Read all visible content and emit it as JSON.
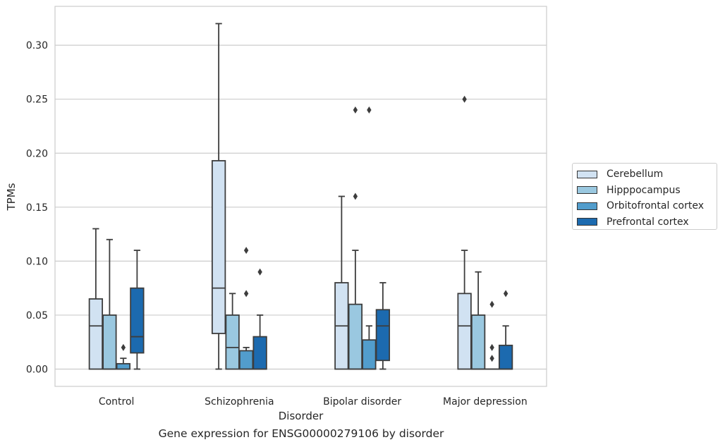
{
  "chart_data": {
    "type": "box",
    "title": "",
    "caption": "Gene expression for ENSG00000279106 by disorder",
    "xlabel": "Disorder",
    "ylabel": "TPMs",
    "ylim": [
      -0.016,
      0.336
    ],
    "yticks": [
      "0.00",
      "0.05",
      "0.10",
      "0.15",
      "0.20",
      "0.25",
      "0.30"
    ],
    "ytick_values": [
      0.0,
      0.05,
      0.1,
      0.15,
      0.2,
      0.25,
      0.3
    ],
    "grid": "horizontal",
    "legend_position": "right",
    "categories": [
      "Control",
      "Schizophrenia",
      "Bipolar disorder",
      "Major depression"
    ],
    "series": [
      {
        "name": "Cerebellum",
        "color": "#d1e2f2",
        "boxes": [
          {
            "whislo": 0.0,
            "q1": 0.0,
            "med": 0.04,
            "q3": 0.065,
            "whishi": 0.13,
            "fliers": []
          },
          {
            "whislo": 0.0,
            "q1": 0.033,
            "med": 0.075,
            "q3": 0.193,
            "whishi": 0.32,
            "fliers": []
          },
          {
            "whislo": 0.0,
            "q1": 0.0,
            "med": 0.04,
            "q3": 0.08,
            "whishi": 0.16,
            "fliers": []
          },
          {
            "whislo": 0.0,
            "q1": 0.0,
            "med": 0.04,
            "q3": 0.07,
            "whishi": 0.11,
            "fliers": [
              0.25
            ]
          }
        ]
      },
      {
        "name": "Hipppocampus",
        "color": "#9ac8e0",
        "boxes": [
          {
            "whislo": 0.0,
            "q1": 0.0,
            "med": 0.0,
            "q3": 0.05,
            "whishi": 0.12,
            "fliers": []
          },
          {
            "whislo": 0.0,
            "q1": 0.0,
            "med": 0.02,
            "q3": 0.05,
            "whishi": 0.07,
            "fliers": []
          },
          {
            "whislo": 0.0,
            "q1": 0.0,
            "med": 0.0,
            "q3": 0.06,
            "whishi": 0.11,
            "fliers": [
              0.16,
              0.24
            ]
          },
          {
            "whislo": 0.0,
            "q1": 0.0,
            "med": 0.0,
            "q3": 0.05,
            "whishi": 0.09,
            "fliers": []
          }
        ]
      },
      {
        "name": "Orbitofrontal cortex",
        "color": "#529dcc",
        "boxes": [
          {
            "whislo": 0.0,
            "q1": 0.0,
            "med": 0.0,
            "q3": 0.005,
            "whishi": 0.01,
            "fliers": [
              0.02
            ]
          },
          {
            "whislo": 0.0,
            "q1": 0.0,
            "med": 0.0,
            "q3": 0.017,
            "whishi": 0.02,
            "fliers": [
              0.07,
              0.11
            ]
          },
          {
            "whislo": 0.0,
            "q1": 0.0,
            "med": 0.0,
            "q3": 0.027,
            "whishi": 0.04,
            "fliers": [
              0.24
            ]
          },
          {
            "whislo": 0.0,
            "q1": 0.0,
            "med": 0.0,
            "q3": 0.0,
            "whishi": 0.0,
            "fliers": [
              0.01,
              0.02,
              0.06
            ]
          }
        ]
      },
      {
        "name": "Prefrontal cortex",
        "color": "#1c6aaf",
        "boxes": [
          {
            "whislo": 0.0,
            "q1": 0.015,
            "med": 0.03,
            "q3": 0.075,
            "whishi": 0.11,
            "fliers": []
          },
          {
            "whislo": 0.0,
            "q1": 0.0,
            "med": 0.0,
            "q3": 0.03,
            "whishi": 0.05,
            "fliers": [
              0.09
            ]
          },
          {
            "whislo": 0.0,
            "q1": 0.008,
            "med": 0.04,
            "q3": 0.055,
            "whishi": 0.08,
            "fliers": []
          },
          {
            "whislo": 0.0,
            "q1": 0.0,
            "med": 0.0,
            "q3": 0.022,
            "whishi": 0.04,
            "fliers": [
              0.07
            ]
          }
        ]
      }
    ]
  }
}
